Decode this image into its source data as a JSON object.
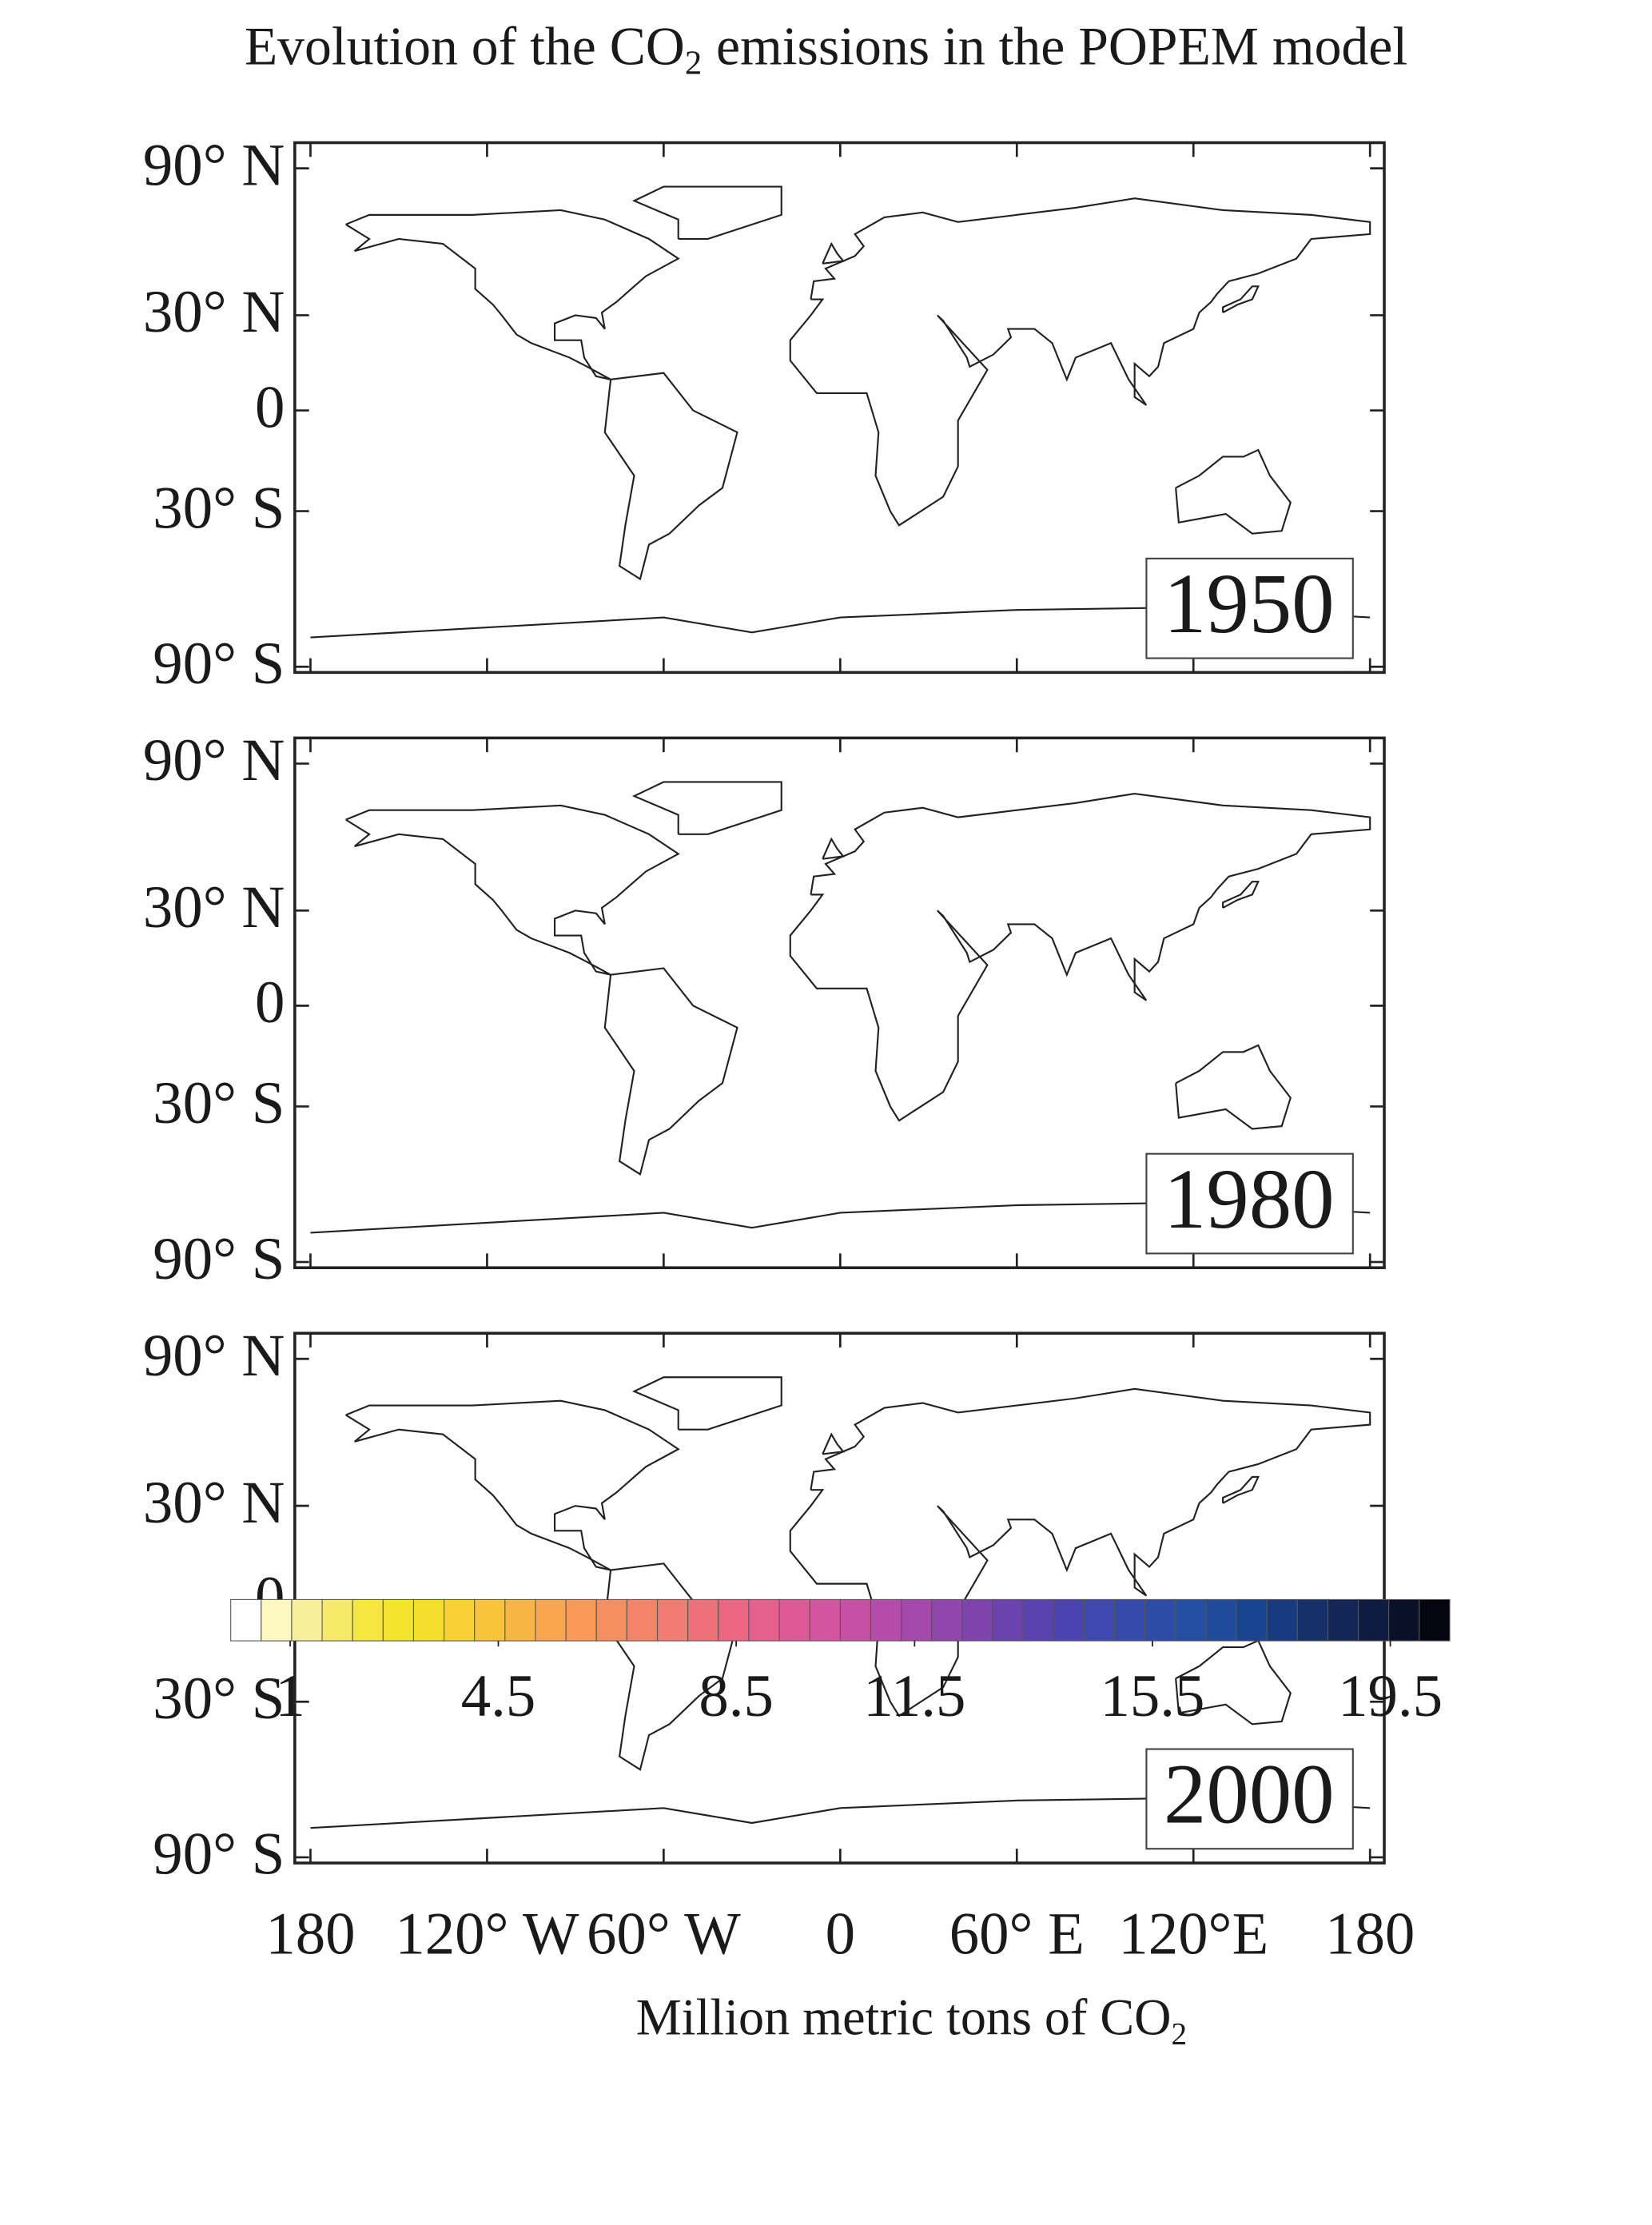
{
  "chart_data": {
    "type": "map",
    "title": {
      "text": "Evolution of the CO",
      "subscript": "2",
      "text_after": "emissions in the POPEM model"
    },
    "panels": [
      "1950",
      "1980",
      "2000"
    ],
    "xlim": [
      -180,
      180
    ],
    "xticks": [
      {
        "value": -180,
        "label": "180"
      },
      {
        "value": -120,
        "label": "120° W"
      },
      {
        "value": -60,
        "label": "60° W"
      },
      0,
      {
        "value": 60,
        "label": "60° E"
      },
      {
        "value": 120,
        "label": "120°E"
      },
      {
        "value": 180,
        "label": "180"
      }
    ],
    "ylim": [
      -90,
      90
    ],
    "yticks": [
      {
        "value": 90,
        "label": "90° N"
      },
      {
        "value": 30,
        "label": "30° N"
      },
      0,
      {
        "value": -30,
        "label": "30° S"
      },
      {
        "value": -90,
        "label": "90° S"
      }
    ],
    "colorbar": {
      "label": {
        "text": "Million metric tons of CO",
        "subscript": "2"
      },
      "lim": [
        0,
        20.5
      ],
      "ticks": [
        1,
        4.5,
        8.5,
        11.5,
        15.5,
        19.5
      ],
      "colors": [
        "#ffffff",
        "#fdf7c0",
        "#f9ef9a",
        "#f7e96a",
        "#f5e640",
        "#f3e52c",
        "#f6de2e",
        "#f8d234",
        "#f9c43a",
        "#f9b544",
        "#f9a74f",
        "#f99a58",
        "#f58e60",
        "#f48468",
        "#f27b72",
        "#f0707a",
        "#ed6784",
        "#e7608d",
        "#de5a97",
        "#d4559f",
        "#c650a5",
        "#b64ca9",
        "#a448ac",
        "#9245ad",
        "#7f43ae",
        "#6c42af",
        "#5a42b0",
        "#4b44b0",
        "#3f47b0",
        "#364aab",
        "#2d4ca6",
        "#244ea2",
        "#1f4b9a",
        "#1a4390",
        "#183a7e",
        "#16306a",
        "#132656",
        "#0f1b40",
        "#0a1028",
        "#050510"
      ]
    }
  }
}
